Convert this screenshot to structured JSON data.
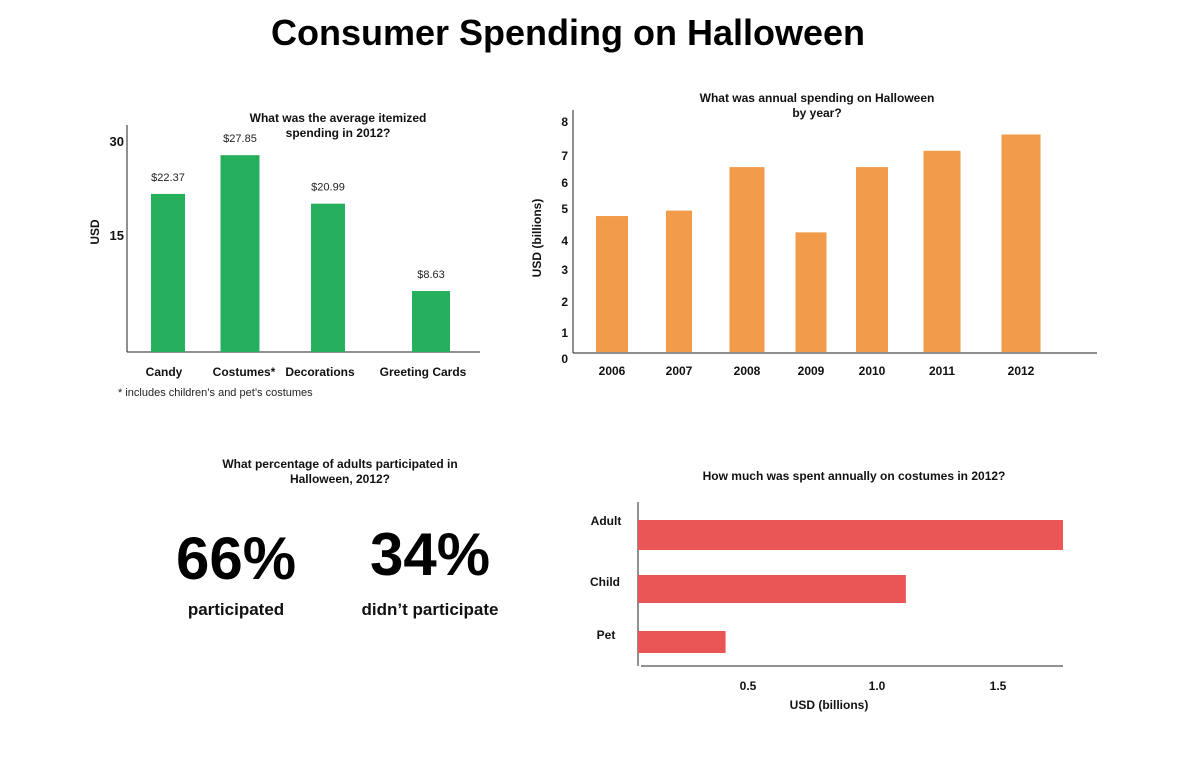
{
  "title": "Consumer Spending on Halloween",
  "colors": {
    "green": "#26b05e",
    "orange": "#f29b4b",
    "red": "#ea5656",
    "axis": "#222222"
  },
  "participation": {
    "title_line1": "What percentage of adults participated in",
    "title_line2": "Halloween, 2012?",
    "participated_value": "66%",
    "participated_label": "participated",
    "not_participated_value": "34%",
    "not_participated_label": "didn’t participate"
  },
  "chart_data": [
    {
      "type": "bar",
      "title": "What was the average itemized spending in 2012?",
      "title_lines": [
        "What was the average itemized",
        "spending in 2012?"
      ],
      "ylabel": "USD",
      "yticks": [
        15,
        30
      ],
      "ylim": [
        0,
        30
      ],
      "categories": [
        "Candy",
        "Costumes*",
        "Decorations",
        "Greeting Cards"
      ],
      "values": [
        22.37,
        27.85,
        20.99,
        8.63
      ],
      "data_labels": [
        "$22.37",
        "$27.85",
        "$20.99",
        "$8.63"
      ],
      "footnote": "* includes children’s and pet’s costumes"
    },
    {
      "type": "bar",
      "title": "What was annual spending on Halloween by year?",
      "title_lines": [
        "What was annual spending on Halloween",
        "by year?"
      ],
      "ylabel": "USD (billions)",
      "yticks": [
        0,
        1,
        2,
        3,
        4,
        5,
        6,
        7,
        8
      ],
      "ylim": [
        0,
        8.9
      ],
      "categories": [
        "2006",
        "2007",
        "2008",
        "2009",
        "2010",
        "2011",
        "2012"
      ],
      "values": [
        5.0,
        5.2,
        6.8,
        4.4,
        6.8,
        7.4,
        8.0
      ]
    },
    {
      "type": "bar",
      "orientation": "horizontal",
      "title": "How much was spent annually on costumes in 2012?",
      "xlabel": "USD (billions)",
      "xticks": [
        "0.5",
        "1.0",
        "1.5"
      ],
      "xlim": [
        0,
        1.65
      ],
      "categories": [
        "Adult",
        "Child",
        "Pet"
      ],
      "values": [
        1.65,
        1.04,
        0.34
      ]
    }
  ]
}
